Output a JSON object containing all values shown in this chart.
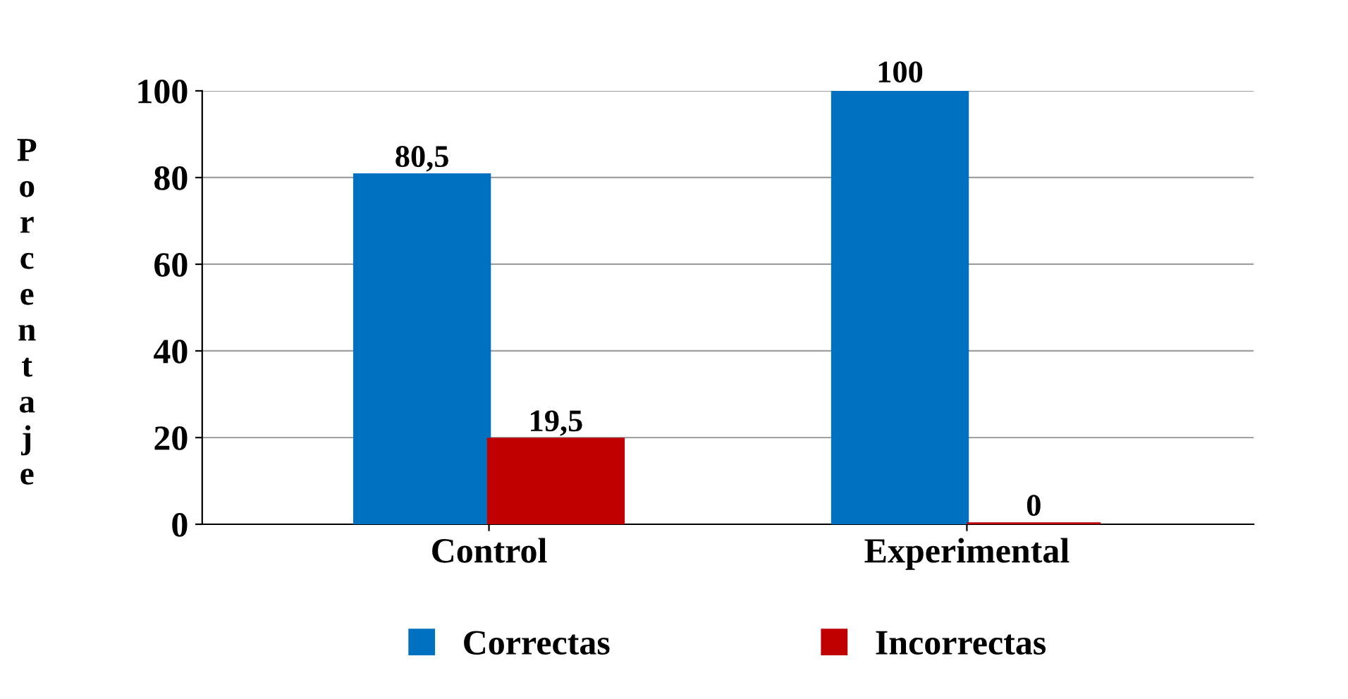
{
  "chart_data": {
    "type": "bar",
    "ylabel": "Porcentaje",
    "categories": [
      "Control",
      "Experimental"
    ],
    "series": [
      {
        "name": "Correctas",
        "color": "#0070c0",
        "values": [
          80.5,
          100
        ],
        "value_labels": [
          "80,5",
          "100"
        ]
      },
      {
        "name": "Incorrectas",
        "color": "#c00000",
        "values": [
          19.5,
          0
        ],
        "value_labels": [
          "19,5",
          "0"
        ]
      }
    ],
    "ylim": [
      0,
      100
    ],
    "yticks": [
      0,
      20,
      40,
      60,
      80,
      100
    ],
    "grid": "y",
    "legend": "bottom"
  }
}
